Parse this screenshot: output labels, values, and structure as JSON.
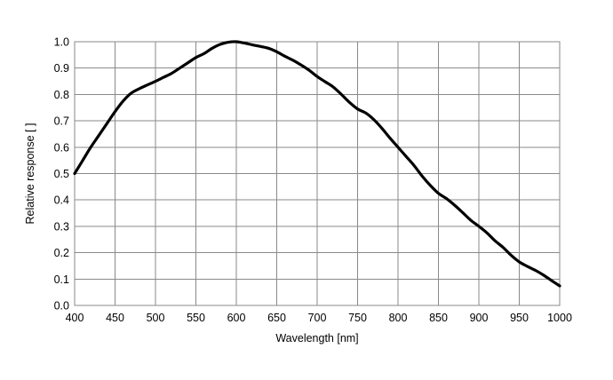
{
  "chart_data": {
    "type": "line",
    "title": "",
    "xlabel": "Wavelength [nm]",
    "ylabel": "Relative response [ ]",
    "xlim": [
      400,
      1000
    ],
    "ylim": [
      0.0,
      1.0
    ],
    "xticks": [
      400,
      450,
      500,
      550,
      600,
      650,
      700,
      750,
      800,
      850,
      900,
      950,
      1000
    ],
    "yticks": [
      0.0,
      0.1,
      0.2,
      0.3,
      0.4,
      0.5,
      0.6,
      0.7,
      0.8,
      0.9,
      1.0
    ],
    "xtick_labels": [
      "400",
      "450",
      "500",
      "550",
      "600",
      "650",
      "700",
      "750",
      "800",
      "850",
      "900",
      "950",
      "1000"
    ],
    "ytick_labels": [
      "0.0",
      "0.1",
      "0.2",
      "0.3",
      "0.4",
      "0.5",
      "0.6",
      "0.7",
      "0.8",
      "0.9",
      "1.0"
    ],
    "grid": true,
    "legend": "none",
    "series": [
      {
        "color": "#000000",
        "x": [
          400,
          410,
          420,
          430,
          440,
          450,
          460,
          470,
          480,
          490,
          500,
          510,
          520,
          530,
          540,
          550,
          560,
          570,
          580,
          590,
          600,
          610,
          620,
          630,
          640,
          650,
          660,
          670,
          680,
          690,
          700,
          710,
          720,
          730,
          740,
          750,
          760,
          770,
          780,
          790,
          800,
          810,
          820,
          830,
          840,
          850,
          860,
          870,
          880,
          890,
          900,
          910,
          920,
          930,
          940,
          950,
          960,
          970,
          980,
          990,
          1000
        ],
        "y": [
          0.5,
          0.55,
          0.6,
          0.645,
          0.69,
          0.735,
          0.775,
          0.805,
          0.822,
          0.836,
          0.85,
          0.865,
          0.88,
          0.9,
          0.92,
          0.94,
          0.955,
          0.975,
          0.99,
          0.998,
          1.0,
          0.995,
          0.988,
          0.982,
          0.975,
          0.962,
          0.945,
          0.93,
          0.912,
          0.892,
          0.868,
          0.848,
          0.828,
          0.8,
          0.77,
          0.745,
          0.73,
          0.705,
          0.672,
          0.635,
          0.6,
          0.565,
          0.53,
          0.49,
          0.455,
          0.425,
          0.405,
          0.38,
          0.352,
          0.323,
          0.3,
          0.275,
          0.245,
          0.22,
          0.19,
          0.165,
          0.148,
          0.133,
          0.115,
          0.094,
          0.074
        ]
      }
    ]
  }
}
